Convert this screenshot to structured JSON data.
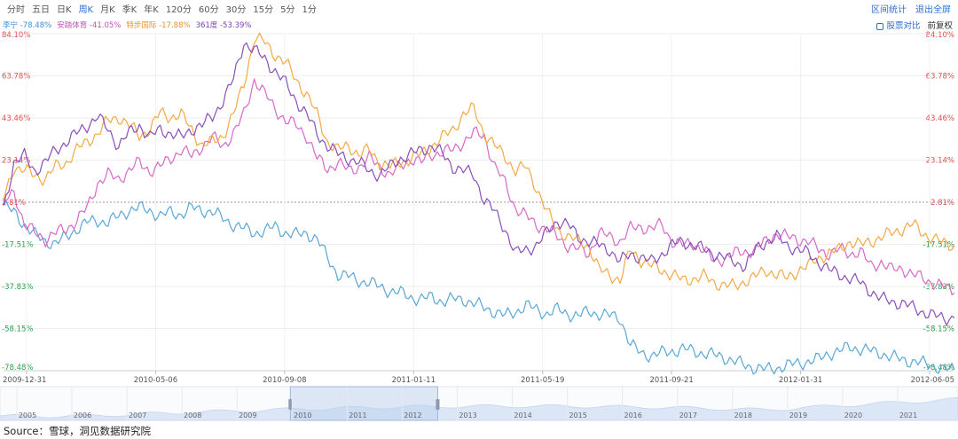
{
  "toolbar": {
    "periods": [
      "分时",
      "五日",
      "日K",
      "周K",
      "月K",
      "季K",
      "年K",
      "120分",
      "60分",
      "30分",
      "15分",
      "5分",
      "1分"
    ],
    "active_period": "周K",
    "interval_stats": "区间统计",
    "exit_fullscreen": "退出全屏",
    "stock_compare": "股票对比",
    "adjust": "前复权"
  },
  "source": "Source：雪球，洞见数据研究院",
  "chart_data": {
    "type": "line",
    "x_tick_labels": [
      "2009-12-31",
      "2010-05-06",
      "2010-09-08",
      "2011-01-11",
      "2011-05-19",
      "2011-09-21",
      "2012-01-31",
      "2012-06-05"
    ],
    "y_tick_labels": [
      "84.10%",
      "63.78%",
      "43.46%",
      "23.14%",
      "2.81%",
      "-17.51%",
      "-37.83%",
      "-58.15%",
      "-78.48%"
    ],
    "ylim": [
      -78.48,
      84.1
    ],
    "baseline": 2.81,
    "grid": true,
    "navigator_years": [
      "2005",
      "2006",
      "2007",
      "2008",
      "2009",
      "2010",
      "2011",
      "2012",
      "2013",
      "2014",
      "2015",
      "2016",
      "2017",
      "2018",
      "2019",
      "2020",
      "2021"
    ],
    "navigator_selected": [
      "2010",
      "2012"
    ],
    "series": [
      {
        "name": "李宁 -78.48%",
        "color": "#5aa7d6",
        "label_color": "#3b8fd9",
        "values": [
          1,
          -2,
          -8,
          -13,
          -16,
          -17,
          -14,
          -10,
          -7,
          -6,
          -7,
          -4,
          -1,
          0,
          -1,
          -4,
          -2,
          -3,
          0,
          -1,
          -2,
          -5,
          -8,
          -10,
          -12,
          -11,
          -9,
          -12,
          -13,
          -12,
          -15,
          -24,
          -32,
          -33,
          -35,
          -36,
          -38,
          -40,
          -41,
          -43,
          -44,
          -43,
          -45,
          -44,
          -44,
          -46,
          -48,
          -50,
          -52,
          -50,
          -47,
          -49,
          -51,
          -49,
          -51,
          -52,
          -50,
          -51,
          -52,
          -53,
          -66,
          -70,
          -71,
          -70,
          -69,
          -68,
          -69,
          -70,
          -71,
          -72,
          -74,
          -76,
          -77,
          -78,
          -77,
          -76,
          -75,
          -74,
          -73,
          -70,
          -69,
          -67,
          -68,
          -69,
          -70,
          -72,
          -73,
          -74,
          -75,
          -76,
          -78,
          -78
        ]
      },
      {
        "name": "安踏体育 -41.05%",
        "color": "#d868c9",
        "label_color": "#c44fb8",
        "values": [
          2,
          8,
          -8,
          -12,
          -15,
          -12,
          -10,
          -6,
          0,
          12,
          16,
          14,
          18,
          22,
          18,
          20,
          24,
          28,
          25,
          30,
          34,
          30,
          36,
          45,
          62,
          55,
          48,
          42,
          40,
          35,
          24,
          19,
          22,
          18,
          20,
          24,
          20,
          16,
          20,
          24,
          22,
          26,
          27,
          28,
          32,
          36,
          35,
          20,
          12,
          0,
          -4,
          -8,
          -10,
          -14,
          -18,
          -20,
          -22,
          -12,
          -14,
          -16,
          -10,
          -9,
          -10,
          -8,
          -16,
          -18,
          -17,
          -20,
          -26,
          -24,
          -22,
          -21,
          -20,
          -16,
          -12,
          -14,
          -15,
          -16,
          -20,
          -22,
          -20,
          -22,
          -21,
          -28,
          -26,
          -30,
          -29,
          -32,
          -34,
          -36,
          -38,
          -41
        ]
      },
      {
        "name": "特步国际 -17.88%",
        "color": "#f3a944",
        "label_color": "#e8932a",
        "values": [
          4,
          20,
          18,
          16,
          14,
          20,
          22,
          28,
          32,
          36,
          42,
          44,
          40,
          35,
          38,
          46,
          44,
          45,
          38,
          30,
          32,
          35,
          45,
          60,
          82,
          80,
          74,
          70,
          62,
          55,
          45,
          32,
          28,
          30,
          26,
          28,
          22,
          20,
          22,
          24,
          26,
          30,
          34,
          38,
          45,
          48,
          36,
          30,
          25,
          18,
          20,
          10,
          -2,
          -10,
          -14,
          -16,
          -18,
          -30,
          -32,
          -35,
          -20,
          -25,
          -28,
          -30,
          -32,
          -35,
          -34,
          -33,
          -36,
          -37,
          -38,
          -35,
          -33,
          -30,
          -32,
          -34,
          -30,
          -28,
          -24,
          -22,
          -20,
          -16,
          -18,
          -16,
          -14,
          -12,
          -10,
          -8,
          -12,
          -15,
          -17,
          -18
        ]
      },
      {
        "name": "361度 -53.39%",
        "color": "#8a4fb9",
        "label_color": "#7a3fa9",
        "values": [
          0,
          22,
          25,
          18,
          22,
          28,
          32,
          36,
          40,
          44,
          38,
          30,
          36,
          40,
          34,
          38,
          36,
          34,
          38,
          40,
          44,
          52,
          62,
          80,
          76,
          72,
          66,
          60,
          52,
          45,
          36,
          30,
          26,
          24,
          22,
          18,
          16,
          20,
          24,
          26,
          28,
          30,
          26,
          20,
          18,
          16,
          4,
          -2,
          -10,
          -22,
          -20,
          -18,
          -12,
          -6,
          -8,
          -14,
          -16,
          -18,
          -20,
          -26,
          -22,
          -24,
          -26,
          -22,
          -18,
          -16,
          -18,
          -20,
          -22,
          -24,
          -26,
          -28,
          -20,
          -16,
          -14,
          -18,
          -20,
          -22,
          -26,
          -30,
          -32,
          -34,
          -36,
          -40,
          -44,
          -45,
          -46,
          -48,
          -50,
          -52,
          -53,
          -53
        ]
      }
    ]
  }
}
